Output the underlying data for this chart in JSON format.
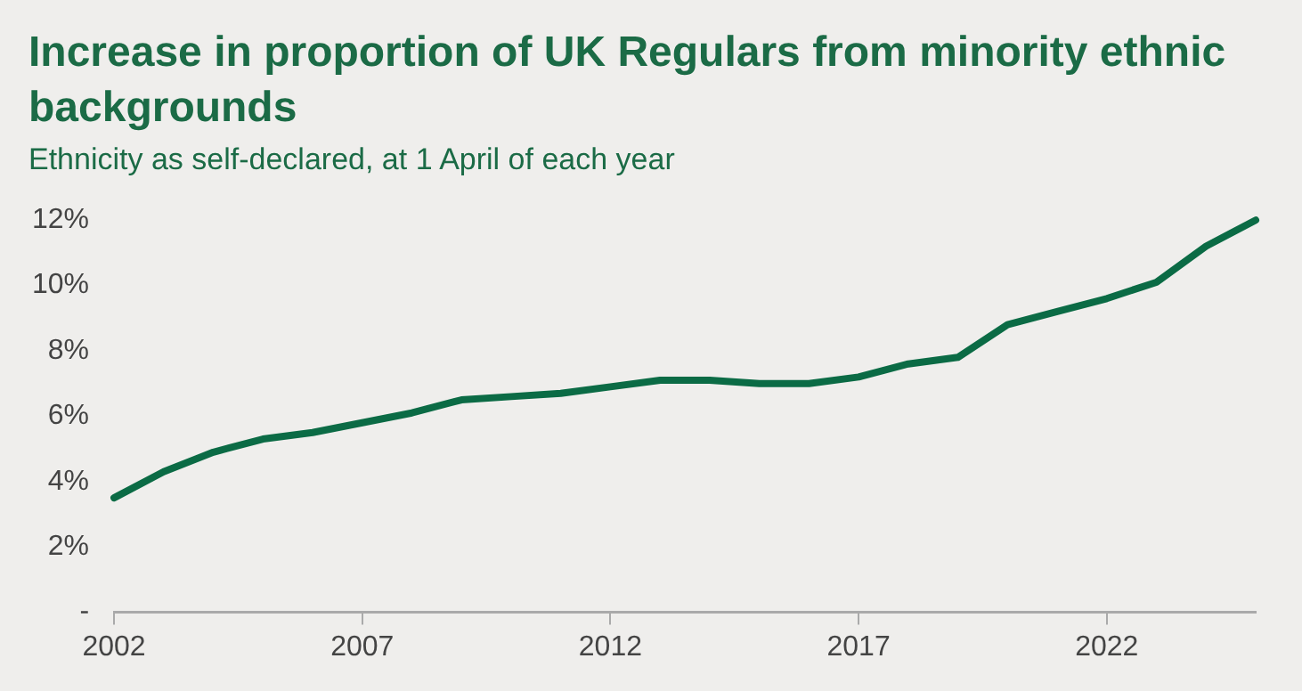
{
  "chart_data": {
    "type": "line",
    "title": "Increase in proportion of UK Regulars from minority ethnic backgrounds",
    "subtitle": "Ethnicity as self-declared, at 1 April of each year",
    "x": [
      2002,
      2003,
      2004,
      2005,
      2006,
      2007,
      2008,
      2009,
      2010,
      2011,
      2012,
      2013,
      2014,
      2015,
      2016,
      2017,
      2018,
      2019,
      2020,
      2021,
      2022,
      2023,
      2024,
      2025
    ],
    "series": [
      {
        "color": "#0b6b45",
        "values": [
          3.5,
          4.3,
          4.9,
          5.3,
          5.5,
          5.8,
          6.1,
          6.5,
          6.6,
          6.7,
          6.9,
          7.1,
          7.1,
          7.0,
          7.0,
          7.2,
          7.6,
          7.8,
          8.8,
          9.2,
          9.6,
          10.1,
          11.2,
          12.0
        ]
      }
    ],
    "xlim": [
      2002,
      2025
    ],
    "xticks": [
      2002,
      2007,
      2012,
      2017,
      2022
    ],
    "ylim": [
      0,
      12
    ],
    "yticks": [
      {
        "value": 0,
        "label": "-"
      },
      {
        "value": 2,
        "label": "2%"
      },
      {
        "value": 4,
        "label": "4%"
      },
      {
        "value": 6,
        "label": "6%"
      },
      {
        "value": 8,
        "label": "8%"
      },
      {
        "value": 10,
        "label": "10%"
      },
      {
        "value": 12,
        "label": "12%"
      }
    ],
    "grid": false,
    "legend": false,
    "marker": "none",
    "line_style": "solid"
  }
}
